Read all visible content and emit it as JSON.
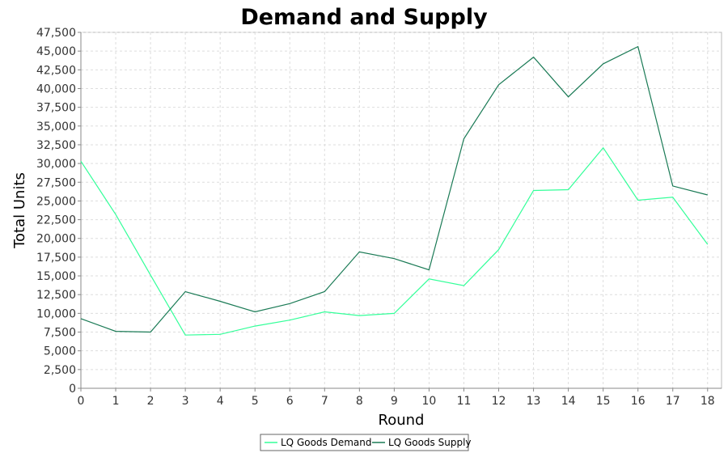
{
  "chart_data": {
    "type": "line",
    "title": "Demand and Supply",
    "xlabel": "Round",
    "ylabel": "Total Units",
    "x": [
      0,
      1,
      2,
      3,
      4,
      5,
      6,
      7,
      8,
      9,
      10,
      11,
      12,
      13,
      14,
      15,
      16,
      17,
      18
    ],
    "xlim": [
      0,
      18.4
    ],
    "ylim": [
      0,
      47500
    ],
    "x_ticks": [
      0,
      1,
      2,
      3,
      4,
      5,
      6,
      7,
      8,
      9,
      10,
      11,
      12,
      13,
      14,
      15,
      16,
      17,
      18
    ],
    "y_ticks": [
      0,
      2500,
      5000,
      7500,
      10000,
      12500,
      15000,
      17500,
      20000,
      22500,
      25000,
      27500,
      30000,
      32500,
      35000,
      37500,
      40000,
      42500,
      45000,
      47500
    ],
    "y_tick_labels": [
      "0",
      "2,500",
      "5,000",
      "7,500",
      "10,000",
      "12,500",
      "15,000",
      "17,500",
      "20,000",
      "22,500",
      "25,000",
      "27,500",
      "30,000",
      "32,500",
      "35,000",
      "37,500",
      "40,000",
      "42,500",
      "45,000",
      "47,500"
    ],
    "grid": true,
    "legend_position": "bottom",
    "series": [
      {
        "name": "LQ Goods Demand",
        "color": "#33ff99",
        "values": [
          30300,
          23200,
          15100,
          7100,
          7200,
          8300,
          9100,
          10200,
          9700,
          10000,
          14600,
          13700,
          18500,
          26400,
          26500,
          32100,
          25100,
          25500,
          19200
        ]
      },
      {
        "name": "LQ Goods Supply",
        "color": "#1a7a55",
        "values": [
          9300,
          7600,
          7500,
          12900,
          11600,
          10200,
          11300,
          12900,
          18200,
          17300,
          15800,
          33300,
          40500,
          44200,
          38900,
          43300,
          45600,
          27000,
          25800
        ]
      }
    ]
  }
}
